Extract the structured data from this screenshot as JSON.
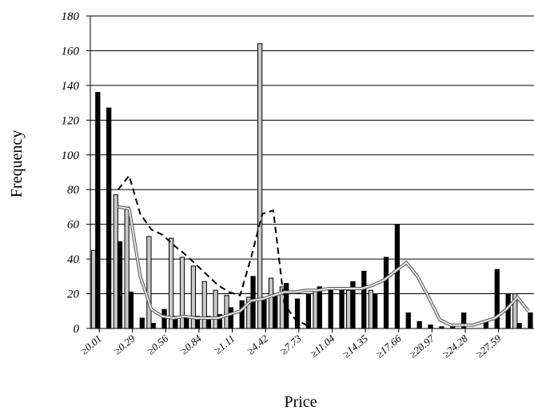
{
  "chart_data": {
    "type": "bar",
    "xlabel": "Price",
    "ylabel": "Frequency",
    "ylim": [
      0,
      180
    ],
    "yticks": [
      "0",
      "20",
      "40",
      "60",
      "80",
      "100",
      "120",
      "140",
      "160",
      "180"
    ],
    "x_tick_labels": [
      "≥0.01",
      "≥0.29",
      "≥0.56",
      "≥0.84",
      "≥1.11",
      "≥4.42",
      "≥7.73",
      "≥11.04",
      "≥14.35",
      "≥17.66",
      "≥20.97",
      "≥24.28",
      "≥27.59"
    ],
    "n_bins": 40,
    "grid": "horizontal",
    "series": [
      {
        "style": "gray-bars",
        "values": [
          45,
          0,
          77,
          70,
          0,
          53,
          0,
          52,
          41,
          36,
          27,
          22,
          19,
          0,
          18,
          164,
          29,
          24,
          0,
          0,
          22,
          0,
          0,
          22,
          0,
          22,
          0,
          0,
          0,
          0,
          0,
          0,
          0,
          0,
          0,
          0,
          0,
          0,
          20,
          0
        ]
      },
      {
        "style": "black-bars",
        "values": [
          136,
          127,
          50,
          21,
          6,
          3,
          11,
          7,
          7,
          7,
          7,
          8,
          12,
          16,
          30,
          18,
          19,
          26,
          17,
          20,
          24,
          22,
          22,
          27,
          33,
          20,
          41,
          60,
          9,
          4,
          2,
          1,
          1,
          9,
          0,
          4,
          34,
          20,
          3,
          9
        ]
      },
      {
        "style": "dashed-curve",
        "values": [
          null,
          null,
          80,
          88,
          66,
          57,
          54,
          48,
          43,
          37,
          31,
          25,
          21,
          19,
          41,
          66,
          68,
          14,
          5,
          2,
          null,
          null,
          null,
          null,
          null,
          null,
          null,
          null,
          null,
          null,
          null,
          null,
          null,
          null,
          null,
          null,
          null,
          null,
          null,
          null
        ]
      },
      {
        "style": "gray-curve",
        "values": [
          null,
          null,
          70,
          69,
          30,
          11,
          7,
          6,
          7,
          6,
          6,
          6,
          8,
          10,
          16,
          17,
          19,
          21,
          21,
          22,
          22,
          23,
          23,
          23,
          23,
          25,
          28,
          33,
          38,
          30,
          18,
          5,
          2,
          2,
          2,
          4,
          6,
          11,
          18,
          10
        ]
      }
    ]
  }
}
